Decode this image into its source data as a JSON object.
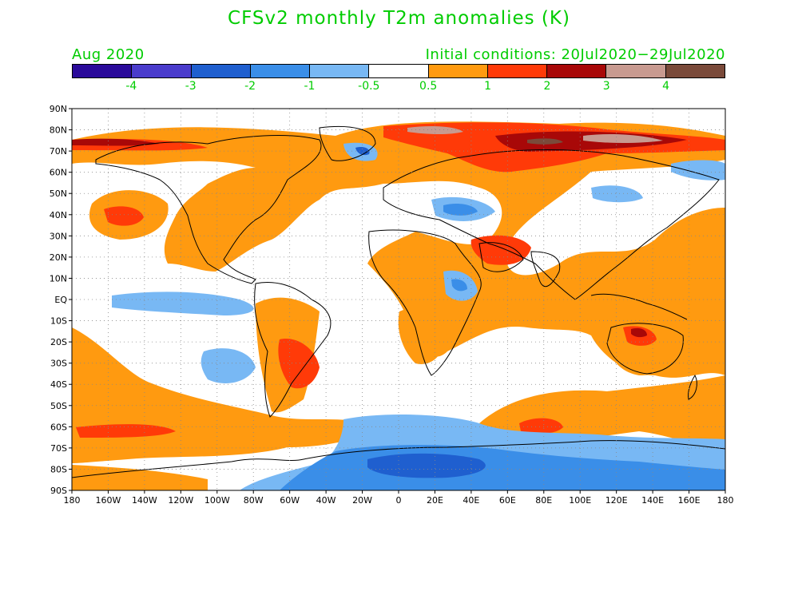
{
  "title": "CFSv2 monthly T2m anomalies (K)",
  "left_subtitle": "Aug 2020",
  "right_subtitle": "Initial conditions: 20Jul2020−29Jul2020",
  "colorbar": {
    "colors": [
      "#2a0a9a",
      "#4a3ccc",
      "#1f5fcf",
      "#3a8ee8",
      "#78b8f4",
      "#ffffff",
      "#ff9a10",
      "#ff3a08",
      "#a80808",
      "#c89a90",
      "#7a4a3a"
    ],
    "labels": [
      "-4",
      "-3",
      "-2",
      "-1",
      "-0.5",
      "0.5",
      "1",
      "2",
      "3",
      "4"
    ]
  },
  "lat_labels": [
    "90N",
    "80N",
    "70N",
    "60N",
    "50N",
    "40N",
    "30N",
    "20N",
    "10N",
    "EQ",
    "10S",
    "20S",
    "30S",
    "40S",
    "50S",
    "60S",
    "70S",
    "80S",
    "90S"
  ],
  "lon_labels": [
    "180",
    "160W",
    "140W",
    "120W",
    "100W",
    "80W",
    "60W",
    "40W",
    "20W",
    "0",
    "20E",
    "40E",
    "60E",
    "80E",
    "100E",
    "120E",
    "140E",
    "160E",
    "180"
  ],
  "legend_colors": {
    "orange": "#ff9a10",
    "red": "#ff3a08",
    "dark_red": "#a80808",
    "light_blue": "#78b8f4",
    "mid_blue": "#3a8ee8",
    "dark_blue": "#1f5fcf",
    "text_green": "#00cc00"
  }
}
